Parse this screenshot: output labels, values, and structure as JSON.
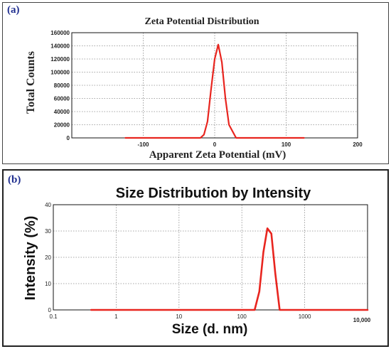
{
  "panels": {
    "a": {
      "label": "(a)"
    },
    "b": {
      "label": "(b)"
    }
  },
  "chart_data": [
    {
      "type": "line",
      "title": "Zeta Potential Distribution",
      "xlabel": "Apparent Zeta Potential (mV)",
      "ylabel": "Total Counts",
      "xlim": [
        -200,
        200
      ],
      "ylim": [
        0,
        160000
      ],
      "xticks": [
        -100,
        0,
        100,
        200
      ],
      "xtick_labels": [
        "-100",
        "0",
        "100",
        "200"
      ],
      "yticks": [
        0,
        20000,
        40000,
        60000,
        80000,
        100000,
        120000,
        140000,
        160000
      ],
      "ytick_labels": [
        "0",
        "20000",
        "40000",
        "60000",
        "80000",
        "100000",
        "120000",
        "140000",
        "160000"
      ],
      "grid": true,
      "line_color": "#e8251f",
      "series": [
        {
          "x": [
            -125,
            -50,
            -20,
            -15,
            -10,
            -5,
            0,
            5,
            10,
            15,
            20,
            30,
            60,
            125
          ],
          "y": [
            0,
            0,
            0,
            5000,
            25000,
            75000,
            120000,
            142000,
            115000,
            60000,
            20000,
            0,
            0,
            0
          ]
        }
      ]
    },
    {
      "type": "line",
      "title": "Size Distribution by Intensity",
      "xlabel": "Size (d. nm)",
      "ylabel": "Intensity (%)",
      "xscale": "log",
      "xlim": [
        0.1,
        10000
      ],
      "ylim": [
        0,
        40
      ],
      "xticks": [
        0.1,
        1,
        10,
        100,
        1000,
        10000
      ],
      "xtick_labels": [
        "0.1",
        "1",
        "10",
        "100",
        "1000",
        "10,000"
      ],
      "yticks": [
        0,
        10,
        20,
        30,
        40
      ],
      "ytick_labels": [
        "0",
        "10",
        "20",
        "30",
        "40"
      ],
      "grid": true,
      "line_color": "#e8251f",
      "series": [
        {
          "x": [
            0.4,
            100,
            160,
            190,
            220,
            255,
            295,
            340,
            400,
            10000
          ],
          "y": [
            0,
            0,
            0,
            7,
            22,
            31,
            29,
            14,
            0,
            0
          ]
        }
      ]
    }
  ]
}
